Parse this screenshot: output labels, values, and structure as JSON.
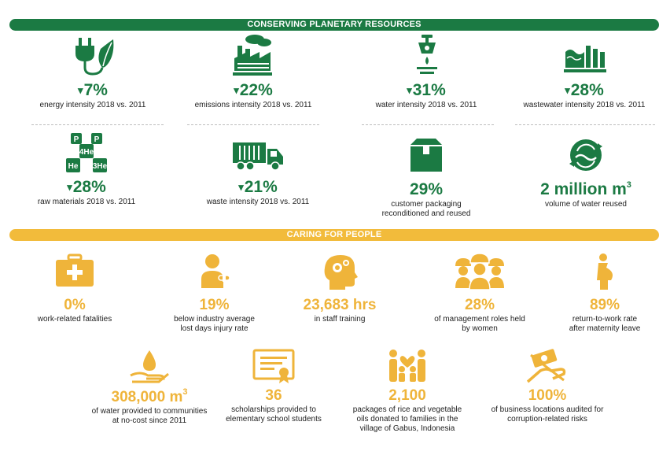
{
  "banners": {
    "planet": "CONSERVING PLANETARY RESOURCES",
    "people": "CARING FOR PEOPLE"
  },
  "colors": {
    "green": "#1b7a43",
    "gold": "#f2bb3b"
  },
  "planet": [
    {
      "icon": "plug-leaf-icon",
      "arrow": "▾",
      "value": "7%",
      "label": "energy intensity 2018 vs. 2011"
    },
    {
      "icon": "factory-icon",
      "arrow": "▾",
      "value": "22%",
      "label": "emissions intensity 2018 vs. 2011"
    },
    {
      "icon": "faucet-icon",
      "arrow": "▾",
      "value": "31%",
      "label": "water intensity 2018 vs. 2011"
    },
    {
      "icon": "wastewater-icon",
      "arrow": "▾",
      "value": "28%",
      "label": "wastewater intensity 2018 vs. 2011"
    },
    {
      "icon": "chemical-elements-icon",
      "arrow": "▾",
      "value": "28%",
      "label": "raw materials 2018 vs. 2011",
      "elements": [
        "P",
        "P",
        "4He",
        "He",
        "3He"
      ]
    },
    {
      "icon": "truck-icon",
      "arrow": "▾",
      "value": "21%",
      "label": "waste intensity 2018 vs. 2011"
    },
    {
      "icon": "box-icon",
      "value": "29%",
      "label_lines": [
        "customer packaging",
        "reconditioned and reused"
      ]
    },
    {
      "icon": "water-recycle-icon",
      "value": "2 million m",
      "value_sup": "3",
      "label": "volume of water reused"
    }
  ],
  "people": [
    {
      "icon": "first-aid-kit-icon",
      "value": "0%",
      "label_lines": [
        "work-related fatalities"
      ]
    },
    {
      "icon": "injured-worker-icon",
      "value": "19%",
      "label_lines": [
        "below industry average",
        "lost days injury rate"
      ]
    },
    {
      "icon": "head-gears-icon",
      "value": "23,683 hrs",
      "label_lines": [
        "in staff training"
      ]
    },
    {
      "icon": "women-hardhats-icon",
      "value": "28%",
      "label_lines": [
        "of management roles held",
        "by women"
      ]
    },
    {
      "icon": "pregnant-woman-icon",
      "value": "89%",
      "label_lines": [
        "return-to-work rate",
        "after maternity leave"
      ]
    },
    {
      "icon": "water-hand-icon",
      "value": "308,000 m",
      "value_sup": "3",
      "label_lines": [
        "of water provided to communities",
        "at no-cost since 2011"
      ]
    },
    {
      "icon": "certificate-icon",
      "value": "36",
      "label_lines": [
        "scholarships provided to",
        "elementary school students"
      ]
    },
    {
      "icon": "family-icon",
      "value": "2,100",
      "label_lines": [
        "packages of rice and vegetable",
        "oils donated to families in the",
        "village of Gabus, Indonesia"
      ]
    },
    {
      "icon": "hand-money-icon",
      "value": "100%",
      "label_lines": [
        "of business locations audited for",
        "corruption-related risks"
      ]
    }
  ]
}
